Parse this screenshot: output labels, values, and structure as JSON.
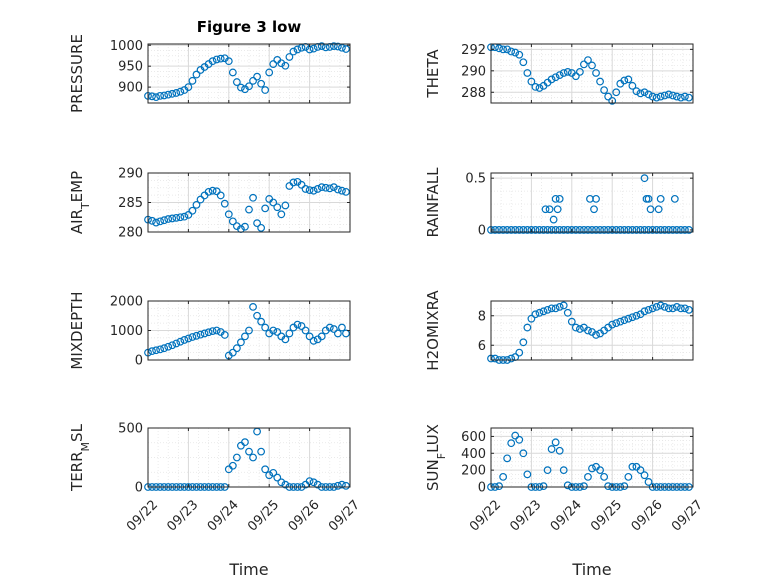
{
  "figure": {
    "title": "Figure 3 low",
    "xlabel": "Time",
    "x_ticks": [
      "09/22",
      "09/23",
      "09/24",
      "09/25",
      "09/26",
      "09/27"
    ],
    "marker_color": "#0072BD",
    "grid_color": "#d9d9d9"
  },
  "chart_data": [
    {
      "type": "scatter",
      "title": "Figure 3 low",
      "ylabel": "PRESSURE",
      "ylabel_sub": "",
      "xlim": [
        0,
        5
      ],
      "ylim": [
        862,
        1003
      ],
      "yticks": [
        900,
        950,
        1000
      ],
      "x": [
        0.0,
        0.1,
        0.2,
        0.3,
        0.4,
        0.5,
        0.6,
        0.7,
        0.8,
        0.9,
        1.0,
        1.1,
        1.2,
        1.3,
        1.4,
        1.5,
        1.6,
        1.7,
        1.8,
        1.9,
        2.0,
        2.1,
        2.2,
        2.3,
        2.4,
        2.5,
        2.6,
        2.7,
        2.8,
        2.9,
        3.0,
        3.1,
        3.2,
        3.3,
        3.4,
        3.5,
        3.6,
        3.7,
        3.8,
        3.9,
        4.0,
        4.1,
        4.2,
        4.3,
        4.4,
        4.5,
        4.6,
        4.7,
        4.8,
        4.9
      ],
      "values": [
        879,
        878,
        876,
        879,
        880,
        882,
        884,
        886,
        889,
        893,
        900,
        915,
        930,
        941,
        948,
        955,
        962,
        966,
        968,
        969,
        962,
        935,
        912,
        899,
        895,
        902,
        915,
        925,
        908,
        893,
        935,
        955,
        965,
        957,
        951,
        972,
        985,
        990,
        994,
        996,
        990,
        992,
        996,
        998,
        995,
        996,
        998,
        997,
        994,
        991
      ]
    },
    {
      "type": "scatter",
      "title": "",
      "ylabel": "THETA",
      "ylabel_sub": "",
      "xlim": [
        0,
        5
      ],
      "ylim": [
        287,
        292.5
      ],
      "yticks": [
        288,
        290,
        292
      ],
      "x": [
        0.0,
        0.1,
        0.2,
        0.3,
        0.4,
        0.5,
        0.6,
        0.7,
        0.8,
        0.9,
        1.0,
        1.1,
        1.2,
        1.3,
        1.4,
        1.5,
        1.6,
        1.7,
        1.8,
        1.9,
        2.0,
        2.1,
        2.2,
        2.3,
        2.4,
        2.5,
        2.6,
        2.7,
        2.8,
        2.9,
        3.0,
        3.1,
        3.2,
        3.3,
        3.4,
        3.5,
        3.6,
        3.7,
        3.8,
        3.9,
        4.0,
        4.1,
        4.2,
        4.3,
        4.4,
        4.5,
        4.6,
        4.7,
        4.8,
        4.9
      ],
      "values": [
        292.2,
        292.2,
        292.1,
        292.0,
        292.0,
        291.8,
        291.7,
        291.5,
        290.8,
        289.8,
        289.0,
        288.5,
        288.4,
        288.6,
        288.9,
        289.2,
        289.4,
        289.6,
        289.8,
        289.9,
        289.8,
        289.5,
        289.9,
        290.6,
        291.0,
        290.5,
        289.8,
        289.0,
        288.2,
        287.6,
        287.2,
        288.0,
        288.8,
        289.1,
        289.2,
        288.6,
        288.1,
        287.9,
        288.0,
        287.8,
        287.6,
        287.5,
        287.6,
        287.7,
        287.8,
        287.7,
        287.6,
        287.5,
        287.6,
        287.5
      ]
    },
    {
      "type": "scatter",
      "title": "",
      "ylabel": "AIR",
      "ylabel_sub": "T",
      "ylabel_tail": "EMP",
      "xlim": [
        0,
        5
      ],
      "ylim": [
        280,
        290
      ],
      "yticks": [
        280,
        285,
        290
      ],
      "x": [
        0.0,
        0.1,
        0.2,
        0.3,
        0.4,
        0.5,
        0.6,
        0.7,
        0.8,
        0.9,
        1.0,
        1.1,
        1.2,
        1.3,
        1.4,
        1.5,
        1.6,
        1.7,
        1.8,
        1.9,
        2.0,
        2.1,
        2.2,
        2.3,
        2.4,
        2.5,
        2.6,
        2.7,
        2.8,
        2.9,
        3.0,
        3.1,
        3.2,
        3.3,
        3.4,
        3.5,
        3.6,
        3.7,
        3.8,
        3.9,
        4.0,
        4.1,
        4.2,
        4.3,
        4.4,
        4.5,
        4.6,
        4.7,
        4.8,
        4.9
      ],
      "values": [
        282.1,
        281.9,
        281.6,
        281.8,
        282.0,
        282.2,
        282.3,
        282.4,
        282.5,
        282.6,
        282.9,
        283.6,
        284.6,
        285.5,
        286.2,
        286.8,
        287.0,
        286.9,
        286.2,
        284.8,
        283.0,
        281.8,
        281.0,
        280.5,
        280.9,
        283.8,
        285.8,
        281.5,
        280.7,
        284.0,
        285.6,
        285.0,
        284.2,
        283.0,
        284.5,
        287.8,
        288.4,
        288.5,
        288.0,
        287.3,
        287.1,
        287.0,
        287.3,
        287.6,
        287.5,
        287.4,
        287.6,
        287.2,
        287.0,
        286.8
      ]
    },
    {
      "type": "scatter",
      "title": "",
      "ylabel": "RAINFALL",
      "ylabel_sub": "",
      "xlim": [
        0,
        5
      ],
      "ylim": [
        -0.02,
        0.55
      ],
      "yticks": [
        0,
        0.5
      ],
      "x": [
        0.0,
        0.1,
        0.2,
        0.3,
        0.4,
        0.5,
        0.6,
        0.7,
        0.8,
        0.9,
        1.0,
        1.1,
        1.2,
        1.3,
        1.4,
        1.5,
        1.6,
        1.7,
        1.8,
        1.9,
        2.0,
        2.1,
        2.2,
        2.3,
        2.4,
        2.5,
        2.6,
        2.7,
        2.8,
        2.9,
        3.0,
        3.1,
        3.2,
        3.3,
        3.4,
        3.5,
        3.6,
        3.7,
        3.8,
        3.9,
        4.0,
        4.1,
        4.2,
        4.3,
        4.4,
        4.5,
        4.6,
        4.7,
        4.8,
        4.9,
        1.35,
        1.45,
        1.55,
        1.6,
        1.65,
        1.7,
        2.45,
        2.55,
        2.6,
        3.8,
        3.85,
        3.9,
        3.95,
        4.15,
        4.2,
        4.55
      ],
      "values": [
        0,
        0,
        0,
        0,
        0,
        0,
        0,
        0,
        0,
        0,
        0,
        0,
        0,
        0,
        0,
        0,
        0,
        0,
        0,
        0,
        0,
        0,
        0,
        0,
        0,
        0,
        0,
        0,
        0,
        0,
        0,
        0,
        0,
        0,
        0,
        0,
        0,
        0,
        0,
        0,
        0,
        0,
        0,
        0,
        0,
        0,
        0,
        0,
        0,
        0,
        0.2,
        0.2,
        0.1,
        0.3,
        0.2,
        0.3,
        0.3,
        0.2,
        0.3,
        0.5,
        0.3,
        0.3,
        0.2,
        0.2,
        0.3,
        0.3
      ]
    },
    {
      "type": "scatter",
      "title": "",
      "ylabel": "MIXDEPTH",
      "ylabel_sub": "",
      "xlim": [
        0,
        5
      ],
      "ylim": [
        0,
        2000
      ],
      "yticks": [
        0,
        1000,
        2000
      ],
      "x": [
        0.0,
        0.1,
        0.2,
        0.3,
        0.4,
        0.5,
        0.6,
        0.7,
        0.8,
        0.9,
        1.0,
        1.1,
        1.2,
        1.3,
        1.4,
        1.5,
        1.6,
        1.7,
        1.8,
        1.9,
        2.0,
        2.1,
        2.2,
        2.3,
        2.4,
        2.5,
        2.6,
        2.7,
        2.8,
        2.9,
        3.0,
        3.1,
        3.2,
        3.3,
        3.4,
        3.5,
        3.6,
        3.7,
        3.8,
        3.9,
        4.0,
        4.1,
        4.2,
        4.3,
        4.4,
        4.5,
        4.6,
        4.7,
        4.8,
        4.9
      ],
      "values": [
        250,
        300,
        330,
        360,
        400,
        450,
        500,
        560,
        620,
        680,
        730,
        780,
        820,
        860,
        900,
        940,
        980,
        1000,
        950,
        850,
        150,
        250,
        400,
        600,
        800,
        1000,
        1800,
        1500,
        1300,
        1100,
        900,
        1000,
        950,
        800,
        700,
        900,
        1100,
        1200,
        1150,
        1000,
        800,
        650,
        700,
        800,
        1000,
        1100,
        1050,
        900,
        1100,
        900
      ]
    },
    {
      "type": "scatter",
      "title": "",
      "ylabel": "H2OMIXRA",
      "ylabel_sub": "",
      "xlim": [
        0,
        5
      ],
      "ylim": [
        5,
        9
      ],
      "yticks": [
        6,
        8
      ],
      "x": [
        0.0,
        0.1,
        0.2,
        0.3,
        0.4,
        0.5,
        0.6,
        0.7,
        0.8,
        0.9,
        1.0,
        1.1,
        1.2,
        1.3,
        1.4,
        1.5,
        1.6,
        1.7,
        1.8,
        1.9,
        2.0,
        2.1,
        2.2,
        2.3,
        2.4,
        2.5,
        2.6,
        2.7,
        2.8,
        2.9,
        3.0,
        3.1,
        3.2,
        3.3,
        3.4,
        3.5,
        3.6,
        3.7,
        3.8,
        3.9,
        4.0,
        4.1,
        4.2,
        4.3,
        4.4,
        4.5,
        4.6,
        4.7,
        4.8,
        4.9
      ],
      "values": [
        5.1,
        5.1,
        5.0,
        5.0,
        5.0,
        5.1,
        5.2,
        5.5,
        6.2,
        7.2,
        7.8,
        8.1,
        8.2,
        8.3,
        8.4,
        8.5,
        8.5,
        8.6,
        8.7,
        8.2,
        7.6,
        7.2,
        7.1,
        7.2,
        7.0,
        6.9,
        6.7,
        6.8,
        7.0,
        7.2,
        7.4,
        7.5,
        7.6,
        7.7,
        7.8,
        7.9,
        8.0,
        8.1,
        8.3,
        8.4,
        8.5,
        8.6,
        8.7,
        8.6,
        8.5,
        8.5,
        8.6,
        8.5,
        8.5,
        8.4
      ]
    },
    {
      "type": "scatter",
      "title": "",
      "ylabel": "TERR",
      "ylabel_sub": "M",
      "ylabel_tail": "SL",
      "xlim": [
        0,
        5
      ],
      "ylim": [
        0,
        500
      ],
      "yticks": [
        0,
        500
      ],
      "x": [
        0.0,
        0.1,
        0.2,
        0.3,
        0.4,
        0.5,
        0.6,
        0.7,
        0.8,
        0.9,
        1.0,
        1.1,
        1.2,
        1.3,
        1.4,
        1.5,
        1.6,
        1.7,
        1.8,
        1.9,
        2.0,
        2.1,
        2.2,
        2.3,
        2.4,
        2.5,
        2.6,
        2.7,
        2.8,
        2.9,
        3.0,
        3.1,
        3.2,
        3.3,
        3.4,
        3.5,
        3.6,
        3.7,
        3.8,
        3.9,
        4.0,
        4.1,
        4.2,
        4.3,
        4.4,
        4.5,
        4.6,
        4.7,
        4.8,
        4.9
      ],
      "values": [
        0,
        0,
        0,
        0,
        0,
        0,
        0,
        0,
        0,
        0,
        0,
        0,
        0,
        0,
        0,
        0,
        0,
        0,
        0,
        0,
        150,
        180,
        250,
        350,
        380,
        300,
        250,
        470,
        300,
        150,
        100,
        120,
        80,
        40,
        20,
        0,
        0,
        0,
        0,
        20,
        50,
        40,
        20,
        0,
        0,
        0,
        0,
        10,
        20,
        10
      ]
    },
    {
      "type": "scatter",
      "title": "",
      "ylabel": "SUN",
      "ylabel_sub": "F",
      "ylabel_tail": "LUX",
      "xlim": [
        0,
        5
      ],
      "ylim": [
        0,
        700
      ],
      "yticks": [
        0,
        200,
        400,
        600
      ],
      "x": [
        0.0,
        0.1,
        0.2,
        0.3,
        0.4,
        0.5,
        0.6,
        0.7,
        0.8,
        0.9,
        1.0,
        1.1,
        1.2,
        1.3,
        1.4,
        1.5,
        1.6,
        1.7,
        1.8,
        1.9,
        2.0,
        2.1,
        2.2,
        2.3,
        2.4,
        2.5,
        2.6,
        2.7,
        2.8,
        2.9,
        3.0,
        3.1,
        3.2,
        3.3,
        3.4,
        3.5,
        3.6,
        3.7,
        3.8,
        3.9,
        4.0,
        4.1,
        4.2,
        4.3,
        4.4,
        4.5,
        4.6,
        4.7,
        4.8,
        4.9
      ],
      "values": [
        0,
        0,
        10,
        120,
        340,
        520,
        610,
        560,
        400,
        150,
        0,
        0,
        0,
        10,
        200,
        450,
        530,
        430,
        200,
        20,
        0,
        0,
        0,
        10,
        120,
        220,
        240,
        200,
        120,
        10,
        0,
        0,
        0,
        10,
        120,
        240,
        240,
        200,
        140,
        60,
        0,
        0,
        0,
        0,
        0,
        0,
        0,
        0,
        0,
        0
      ]
    }
  ]
}
